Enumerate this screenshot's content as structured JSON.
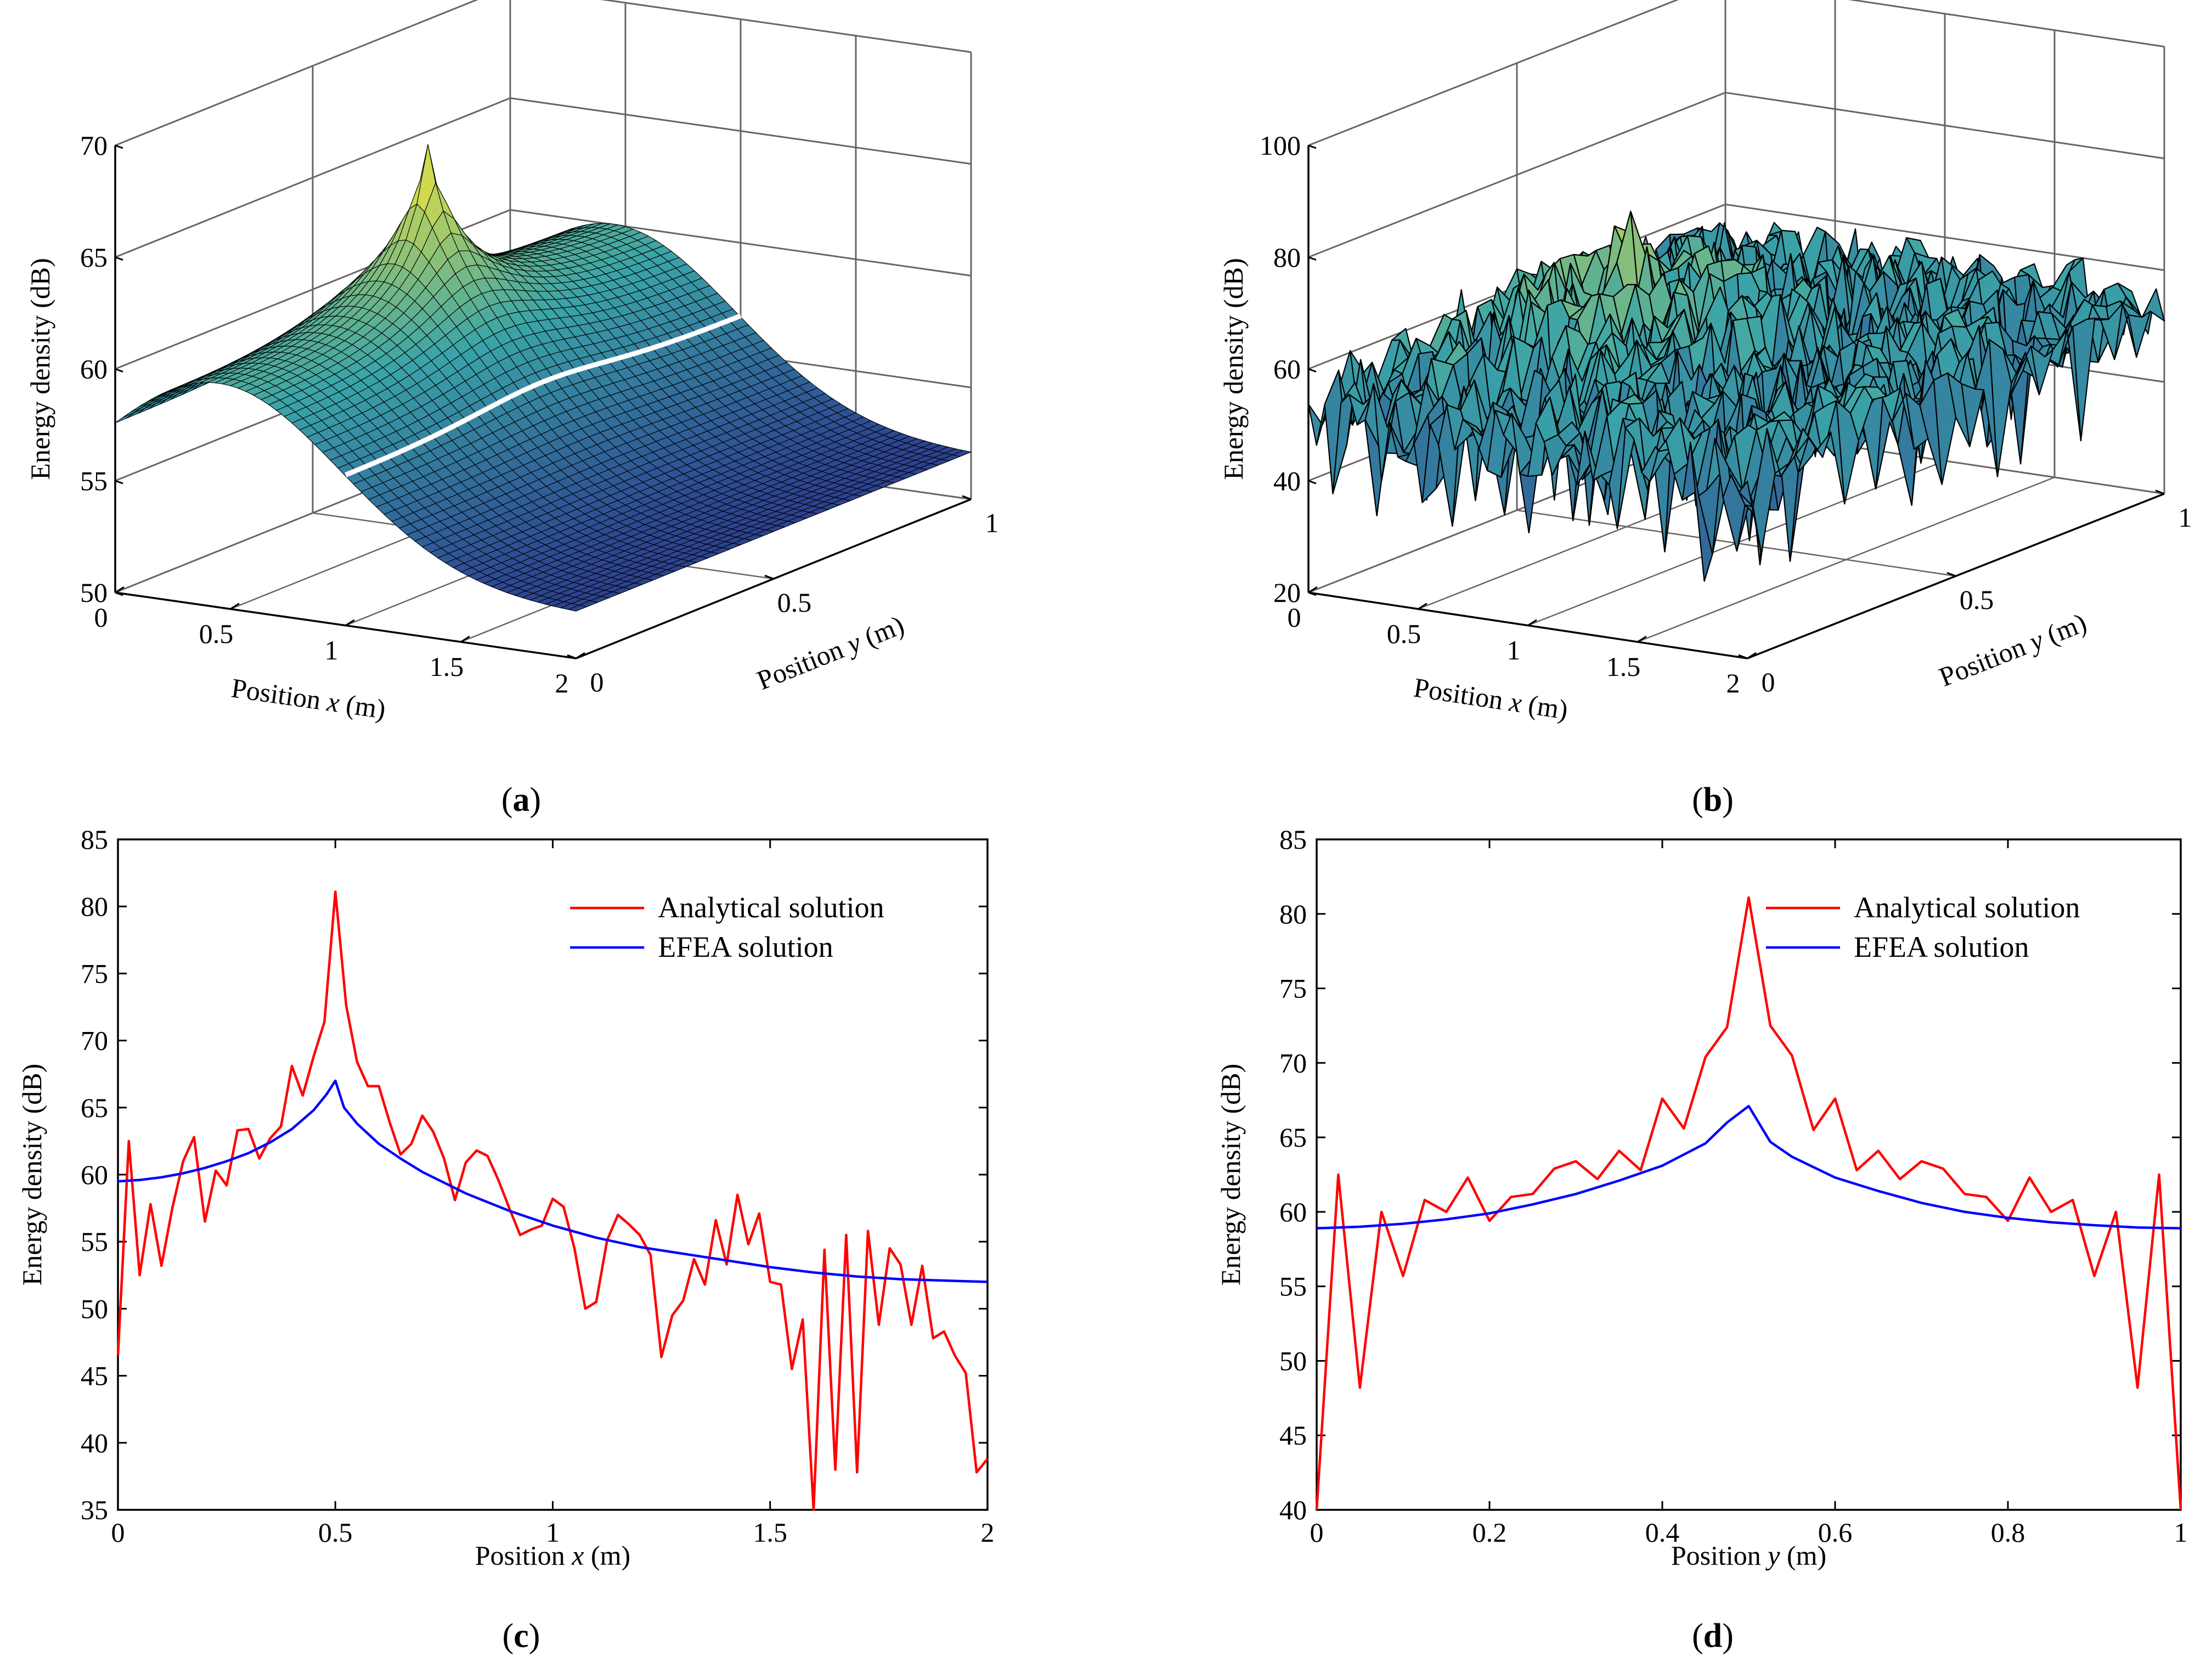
{
  "figure": {
    "panels": [
      {
        "id": "a",
        "caption_letter": "a",
        "kind": "surface-3d"
      },
      {
        "id": "b",
        "caption_letter": "b",
        "kind": "surface-3d"
      },
      {
        "id": "c",
        "caption_letter": "c",
        "kind": "line"
      },
      {
        "id": "d",
        "caption_letter": "d",
        "kind": "line"
      }
    ],
    "colors": {
      "analytical": "#ff0000",
      "efea": "#0000ff",
      "axis": "#000000",
      "grid": "#666666",
      "surface_low": "#2b3a8e",
      "surface_mid": "#3aa4a8",
      "surface_high": "#f5e63a"
    }
  },
  "chart_data": [
    {
      "id": "a",
      "type": "surface",
      "zlabel": "Energy density (dB)",
      "xlabel_prefix": "Position ",
      "xlabel_var": "x",
      "xlabel_suffix": " (m)",
      "ylabel_prefix": "Position ",
      "ylabel_var": "y",
      "ylabel_suffix": " (m)",
      "xlim": [
        0,
        2
      ],
      "ylim": [
        0,
        1
      ],
      "zlim": [
        50,
        70
      ],
      "xticks": [
        "0",
        "0.5",
        "1",
        "1.5",
        "2"
      ],
      "yticks": [
        "0",
        "0.5",
        "1"
      ],
      "zticks": [
        "50",
        "55",
        "60",
        "65",
        "70"
      ],
      "peak": {
        "x": 0.5,
        "y": 0.5,
        "z": 67
      },
      "edge_z": 58.5,
      "far_z": 52,
      "description_values": {
        "source_x": 0.5,
        "source_y": 0.5
      }
    },
    {
      "id": "b",
      "type": "surface",
      "zlabel": "Energy density (dB)",
      "xlabel_prefix": "Position ",
      "xlabel_var": "x",
      "xlabel_suffix": " (m)",
      "ylabel_prefix": "Position ",
      "ylabel_var": "y",
      "ylabel_suffix": " (m)",
      "xlim": [
        0,
        2
      ],
      "ylim": [
        0,
        1
      ],
      "zlim": [
        20,
        100
      ],
      "xticks": [
        "0",
        "0.5",
        "1",
        "1.5",
        "2"
      ],
      "yticks": [
        "0",
        "0.5",
        "1"
      ],
      "zticks": [
        "20",
        "40",
        "60",
        "80",
        "100"
      ],
      "peak": {
        "x": 0.5,
        "y": 0.5,
        "z": 81
      },
      "mean_z": 55,
      "min_z": 30
    },
    {
      "id": "c",
      "type": "line",
      "xlabel_prefix": "Position ",
      "xlabel_var": "x",
      "xlabel_suffix": " (m)",
      "ylabel": "Energy density (dB)",
      "xlim": [
        0,
        2
      ],
      "ylim": [
        35,
        85
      ],
      "xticks": [
        0,
        0.5,
        1,
        1.5,
        2
      ],
      "xtick_labels": [
        "0",
        "0.5",
        "1",
        "1.5",
        "2"
      ],
      "yticks": [
        35,
        40,
        45,
        50,
        55,
        60,
        65,
        70,
        75,
        80,
        85
      ],
      "ytick_labels": [
        "35",
        "40",
        "45",
        "50",
        "55",
        "60",
        "65",
        "70",
        "75",
        "80",
        "85"
      ],
      "legend_position": "top-right",
      "series": [
        {
          "name": "Analytical solution",
          "color": "#ff0000",
          "x": [
            0,
            0.025,
            0.05,
            0.075,
            0.1,
            0.125,
            0.15,
            0.175,
            0.2,
            0.225,
            0.25,
            0.275,
            0.3,
            0.325,
            0.35,
            0.375,
            0.4,
            0.425,
            0.45,
            0.475,
            0.5,
            0.525,
            0.55,
            0.575,
            0.6,
            0.625,
            0.65,
            0.675,
            0.7,
            0.725,
            0.75,
            0.775,
            0.8,
            0.825,
            0.85,
            0.875,
            0.9,
            0.925,
            0.95,
            0.975,
            1,
            1.025,
            1.05,
            1.075,
            1.1,
            1.125,
            1.15,
            1.175,
            1.2,
            1.225,
            1.25,
            1.275,
            1.3,
            1.325,
            1.35,
            1.375,
            1.4,
            1.425,
            1.45,
            1.475,
            1.5,
            1.525,
            1.55,
            1.575,
            1.6,
            1.625,
            1.65,
            1.675,
            1.7,
            1.725,
            1.75,
            1.775,
            1.8,
            1.825,
            1.85,
            1.875,
            1.9,
            1.925,
            1.95,
            1.975,
            2
          ],
          "values": [
            46.5,
            62.5,
            52.5,
            57.8,
            53.2,
            57.5,
            61,
            62.8,
            56.5,
            60.3,
            59.2,
            63.3,
            63.4,
            61.2,
            62.7,
            63.6,
            68.1,
            65.9,
            68.8,
            71.4,
            81.1,
            72.6,
            68.4,
            66.6,
            66.6,
            63.9,
            61.5,
            62.3,
            64.4,
            63.2,
            61.2,
            58.1,
            60.9,
            61.8,
            61.4,
            59.6,
            57.5,
            55.5,
            55.9,
            56.2,
            58.2,
            57.6,
            54.5,
            50,
            50.5,
            55.1,
            57,
            56.3,
            55.5,
            54,
            46.4,
            49.5,
            50.6,
            53.7,
            51.8,
            56.6,
            53.3,
            58.5,
            54.8,
            57.1,
            52,
            51.8,
            45.5,
            49.2,
            35,
            54.4,
            38,
            55.5,
            37.8,
            55.8,
            48.8,
            54.5,
            53.3,
            48.8,
            53.2,
            47.8,
            48.3,
            46.5,
            45.2,
            37.8,
            38.8
          ]
        },
        {
          "name": "EFEA solution",
          "color": "#0000ff",
          "x": [
            0,
            0.05,
            0.1,
            0.15,
            0.2,
            0.25,
            0.3,
            0.35,
            0.4,
            0.45,
            0.48,
            0.5,
            0.52,
            0.55,
            0.6,
            0.65,
            0.7,
            0.8,
            0.9,
            1,
            1.1,
            1.2,
            1.3,
            1.4,
            1.5,
            1.6,
            1.7,
            1.8,
            1.9,
            2
          ],
          "values": [
            59.5,
            59.6,
            59.8,
            60.1,
            60.5,
            61,
            61.6,
            62.4,
            63.4,
            64.8,
            66,
            67,
            65,
            63.8,
            62.3,
            61.2,
            60.2,
            58.6,
            57.3,
            56.2,
            55.3,
            54.6,
            54.1,
            53.6,
            53.1,
            52.7,
            52.4,
            52.2,
            52.1,
            52
          ]
        }
      ]
    },
    {
      "id": "d",
      "type": "line",
      "xlabel_prefix": "Position ",
      "xlabel_var": "y",
      "xlabel_suffix": " (m)",
      "ylabel": "Energy density (dB)",
      "xlim": [
        0,
        1
      ],
      "ylim": [
        40,
        85
      ],
      "xticks": [
        0,
        0.2,
        0.4,
        0.6,
        0.8,
        1
      ],
      "xtick_labels": [
        "0",
        "0.2",
        "0.4",
        "0.6",
        "0.8",
        "1"
      ],
      "yticks": [
        40,
        45,
        50,
        55,
        60,
        65,
        70,
        75,
        80,
        85
      ],
      "ytick_labels": [
        "40",
        "45",
        "50",
        "55",
        "60",
        "65",
        "70",
        "75",
        "80",
        "85"
      ],
      "legend_position": "top-right",
      "series": [
        {
          "name": "Analytical solution",
          "color": "#ff0000",
          "x": [
            0,
            0.025,
            0.05,
            0.075,
            0.1,
            0.125,
            0.15,
            0.175,
            0.2,
            0.225,
            0.25,
            0.275,
            0.3,
            0.325,
            0.35,
            0.375,
            0.4,
            0.425,
            0.45,
            0.475,
            0.5,
            0.525,
            0.55,
            0.575,
            0.6,
            0.625,
            0.65,
            0.675,
            0.7,
            0.725,
            0.75,
            0.775,
            0.8,
            0.825,
            0.85,
            0.875,
            0.9,
            0.925,
            0.95,
            0.975,
            1
          ],
          "values": [
            40,
            62.5,
            48.2,
            60,
            55.7,
            60.8,
            60,
            62.3,
            59.4,
            61,
            61.2,
            62.9,
            63.4,
            62.2,
            64.1,
            62.8,
            67.6,
            65.6,
            70.4,
            72.4,
            81.1,
            72.5,
            70.5,
            65.5,
            67.6,
            62.8,
            64.1,
            62.2,
            63.4,
            62.9,
            61.2,
            61,
            59.4,
            62.3,
            60,
            60.8,
            55.7,
            60,
            48.2,
            62.5,
            40
          ]
        },
        {
          "name": "EFEA solution",
          "color": "#0000ff",
          "x": [
            0,
            0.05,
            0.1,
            0.15,
            0.2,
            0.25,
            0.3,
            0.35,
            0.4,
            0.45,
            0.475,
            0.5,
            0.525,
            0.55,
            0.6,
            0.65,
            0.7,
            0.75,
            0.8,
            0.85,
            0.9,
            0.95,
            1
          ],
          "values": [
            58.9,
            59,
            59.2,
            59.5,
            59.9,
            60.5,
            61.2,
            62.1,
            63.1,
            64.6,
            66,
            67.1,
            64.7,
            63.7,
            62.3,
            61.4,
            60.6,
            60,
            59.6,
            59.3,
            59.1,
            58.95,
            58.9
          ]
        }
      ]
    }
  ]
}
